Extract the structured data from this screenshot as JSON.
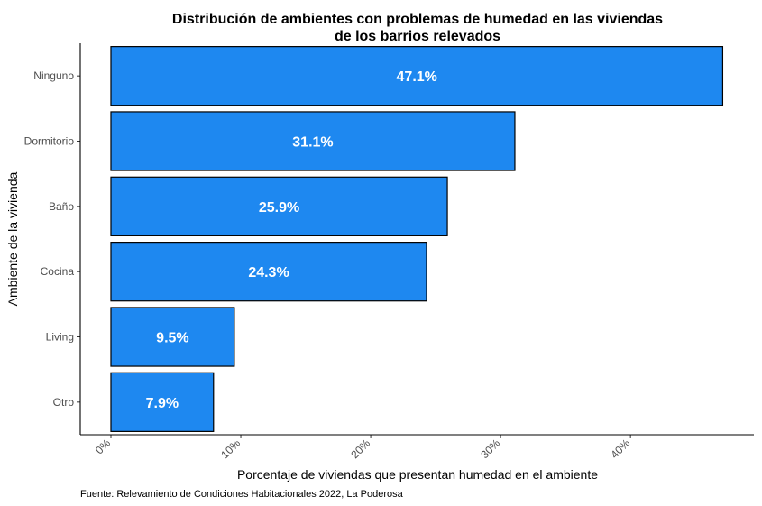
{
  "chart_data": {
    "type": "bar",
    "orientation": "horizontal",
    "title_lines": [
      "Distribución de ambientes con problemas de humedad en las viviendas",
      "de los barrios relevados"
    ],
    "xlabel": "Porcentaje de viviendas que presentan humedad en el ambiente",
    "ylabel": "Ambiente de la vivienda",
    "caption": "Fuente: Relevamiento de Condiciones Habitacionales 2022, La Poderosa",
    "categories": [
      "Ninguno",
      "Dormitorio",
      "Baño",
      "Cocina",
      "Living",
      "Otro"
    ],
    "values": [
      47.1,
      31.1,
      25.9,
      24.3,
      9.5,
      7.9
    ],
    "data_labels": [
      "47.1%",
      "31.1%",
      "25.9%",
      "24.3%",
      "9.5%",
      "7.9%"
    ],
    "x_ticks": [
      0,
      10,
      20,
      30,
      40
    ],
    "x_tick_labels": [
      "0%",
      "10%",
      "20%",
      "30%",
      "40%"
    ],
    "xlim": [
      -2.36,
      49.5
    ],
    "bar_color": "#1e88f0",
    "bar_border_color": "#000000",
    "grid": false,
    "legend": "none"
  }
}
